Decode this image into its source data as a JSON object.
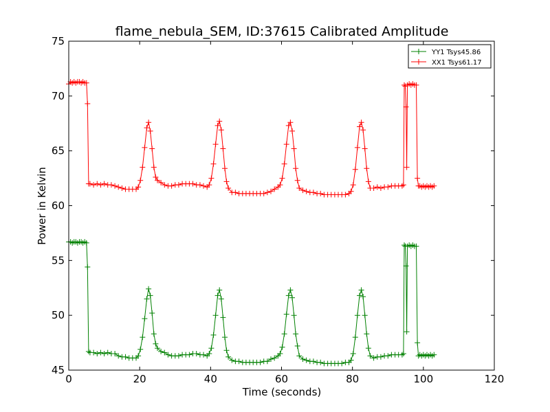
{
  "chart_data": {
    "type": "line",
    "title": "flame_nebula_SEM, ID:37615 Calibrated Amplitude",
    "xlabel": "Time (seconds)",
    "ylabel": "Power in Kelvin",
    "xlim": [
      0,
      120
    ],
    "ylim": [
      45,
      75
    ],
    "xticks": [
      0,
      20,
      40,
      60,
      80,
      100,
      120
    ],
    "yticks": [
      45,
      50,
      55,
      60,
      65,
      70,
      75
    ],
    "grid": false,
    "legend_position": "top-right",
    "marker": "+",
    "series": [
      {
        "name": "YY1 Tsys45.86",
        "color": "#008000",
        "points": [
          [
            0.0,
            56.7
          ],
          [
            0.5,
            56.7
          ],
          [
            1.0,
            56.6
          ],
          [
            1.5,
            56.7
          ],
          [
            2.0,
            56.7
          ],
          [
            2.5,
            56.6
          ],
          [
            3.0,
            56.7
          ],
          [
            3.5,
            56.7
          ],
          [
            4.0,
            56.6
          ],
          [
            4.5,
            56.7
          ],
          [
            5.0,
            56.6
          ],
          [
            5.3,
            54.4
          ],
          [
            5.6,
            46.7
          ],
          [
            6.0,
            46.6
          ],
          [
            7,
            46.6
          ],
          [
            8,
            46.5
          ],
          [
            9,
            46.6
          ],
          [
            10,
            46.5
          ],
          [
            11,
            46.6
          ],
          [
            12,
            46.5
          ],
          [
            13,
            46.5
          ],
          [
            14,
            46.3
          ],
          [
            15,
            46.2
          ],
          [
            16,
            46.2
          ],
          [
            17,
            46.1
          ],
          [
            18,
            46.1
          ],
          [
            19,
            46.1
          ],
          [
            19.6,
            46.3
          ],
          [
            20.2,
            46.9
          ],
          [
            20.8,
            48.0
          ],
          [
            21.4,
            49.7
          ],
          [
            22.0,
            51.5
          ],
          [
            22.5,
            52.4
          ],
          [
            23.0,
            51.8
          ],
          [
            23.5,
            50.2
          ],
          [
            24.0,
            48.3
          ],
          [
            24.5,
            47.4
          ],
          [
            25.0,
            47.0
          ],
          [
            26,
            46.7
          ],
          [
            27,
            46.6
          ],
          [
            28,
            46.4
          ],
          [
            29,
            46.3
          ],
          [
            30,
            46.3
          ],
          [
            31,
            46.3
          ],
          [
            32,
            46.4
          ],
          [
            33,
            46.4
          ],
          [
            34,
            46.4
          ],
          [
            35,
            46.5
          ],
          [
            36,
            46.5
          ],
          [
            37,
            46.4
          ],
          [
            38,
            46.4
          ],
          [
            39,
            46.3
          ],
          [
            39.6,
            46.5
          ],
          [
            40.2,
            47.0
          ],
          [
            40.8,
            48.2
          ],
          [
            41.4,
            50.0
          ],
          [
            42.0,
            51.8
          ],
          [
            42.5,
            52.3
          ],
          [
            43.0,
            51.5
          ],
          [
            43.5,
            49.8
          ],
          [
            44.0,
            48.0
          ],
          [
            44.5,
            46.8
          ],
          [
            45.0,
            46.2
          ],
          [
            46,
            45.9
          ],
          [
            47,
            45.8
          ],
          [
            48,
            45.8
          ],
          [
            49,
            45.7
          ],
          [
            50,
            45.7
          ],
          [
            51,
            45.7
          ],
          [
            52,
            45.7
          ],
          [
            53,
            45.7
          ],
          [
            54,
            45.7
          ],
          [
            55,
            45.8
          ],
          [
            56,
            45.8
          ],
          [
            57,
            46.0
          ],
          [
            58,
            46.1
          ],
          [
            59,
            46.3
          ],
          [
            59.6,
            46.5
          ],
          [
            60.2,
            47.1
          ],
          [
            60.8,
            48.3
          ],
          [
            61.4,
            50.1
          ],
          [
            62.0,
            51.8
          ],
          [
            62.5,
            52.3
          ],
          [
            63.0,
            51.6
          ],
          [
            63.5,
            50.0
          ],
          [
            64.0,
            48.3
          ],
          [
            64.5,
            47.2
          ],
          [
            65.0,
            46.3
          ],
          [
            66,
            46.0
          ],
          [
            67,
            45.9
          ],
          [
            68,
            45.8
          ],
          [
            69,
            45.8
          ],
          [
            70,
            45.7
          ],
          [
            71,
            45.7
          ],
          [
            72,
            45.6
          ],
          [
            73,
            45.6
          ],
          [
            74,
            45.6
          ],
          [
            75,
            45.6
          ],
          [
            76,
            45.6
          ],
          [
            77,
            45.6
          ],
          [
            78,
            45.7
          ],
          [
            79,
            45.7
          ],
          [
            79.6,
            45.9
          ],
          [
            80.2,
            46.5
          ],
          [
            80.8,
            48.0
          ],
          [
            81.4,
            50.0
          ],
          [
            82.0,
            51.8
          ],
          [
            82.5,
            52.3
          ],
          [
            83.0,
            51.7
          ],
          [
            83.5,
            50.0
          ],
          [
            84.0,
            48.3
          ],
          [
            84.5,
            47.0
          ],
          [
            85.0,
            46.3
          ],
          [
            86,
            46.1
          ],
          [
            87,
            46.2
          ],
          [
            88,
            46.2
          ],
          [
            89,
            46.3
          ],
          [
            90,
            46.3
          ],
          [
            91,
            46.4
          ],
          [
            92,
            46.4
          ],
          [
            93,
            46.4
          ],
          [
            94,
            46.4
          ],
          [
            94.4,
            46.5
          ],
          [
            94.6,
            56.4
          ],
          [
            94.9,
            56.3
          ],
          [
            95.1,
            54.5
          ],
          [
            95.3,
            48.5
          ],
          [
            95.5,
            56.3
          ],
          [
            96.0,
            56.4
          ],
          [
            96.5,
            56.3
          ],
          [
            97.0,
            56.4
          ],
          [
            97.5,
            56.3
          ],
          [
            98.0,
            56.3
          ],
          [
            98.3,
            47.5
          ],
          [
            98.6,
            46.3
          ],
          [
            99.0,
            46.4
          ],
          [
            99.5,
            46.3
          ],
          [
            100.0,
            46.4
          ],
          [
            100.5,
            46.3
          ],
          [
            101.0,
            46.4
          ],
          [
            101.5,
            46.3
          ],
          [
            102.0,
            46.4
          ],
          [
            102.5,
            46.3
          ],
          [
            103.0,
            46.4
          ]
        ]
      },
      {
        "name": "XX1 Tsys61.17",
        "color": "#ff0000",
        "points": [
          [
            0.0,
            71.1
          ],
          [
            0.5,
            71.3
          ],
          [
            1.0,
            71.2
          ],
          [
            1.5,
            71.3
          ],
          [
            2.0,
            71.2
          ],
          [
            2.5,
            71.3
          ],
          [
            3.0,
            71.3
          ],
          [
            3.5,
            71.2
          ],
          [
            4.0,
            71.3
          ],
          [
            4.5,
            71.2
          ],
          [
            5.0,
            71.2
          ],
          [
            5.3,
            69.3
          ],
          [
            5.6,
            62.0
          ],
          [
            6.0,
            62.0
          ],
          [
            7,
            61.9
          ],
          [
            8,
            62.0
          ],
          [
            9,
            61.9
          ],
          [
            10,
            62.0
          ],
          [
            11,
            61.9
          ],
          [
            12,
            61.9
          ],
          [
            13,
            61.8
          ],
          [
            14,
            61.7
          ],
          [
            15,
            61.6
          ],
          [
            16,
            61.5
          ],
          [
            17,
            61.5
          ],
          [
            18,
            61.5
          ],
          [
            19,
            61.5
          ],
          [
            19.6,
            61.7
          ],
          [
            20.2,
            62.3
          ],
          [
            20.8,
            63.5
          ],
          [
            21.4,
            65.3
          ],
          [
            22.0,
            67.1
          ],
          [
            22.5,
            67.6
          ],
          [
            23.0,
            66.8
          ],
          [
            23.5,
            65.2
          ],
          [
            24.0,
            63.5
          ],
          [
            24.5,
            62.6
          ],
          [
            25.0,
            62.3
          ],
          [
            26,
            62.1
          ],
          [
            27,
            61.9
          ],
          [
            28,
            61.8
          ],
          [
            29,
            61.8
          ],
          [
            30,
            61.9
          ],
          [
            31,
            61.9
          ],
          [
            32,
            62.0
          ],
          [
            33,
            62.0
          ],
          [
            34,
            62.0
          ],
          [
            35,
            62.0
          ],
          [
            36,
            61.9
          ],
          [
            37,
            61.9
          ],
          [
            38,
            61.8
          ],
          [
            39,
            61.7
          ],
          [
            39.6,
            61.9
          ],
          [
            40.2,
            62.5
          ],
          [
            40.8,
            63.8
          ],
          [
            41.4,
            65.6
          ],
          [
            42.0,
            67.3
          ],
          [
            42.5,
            67.7
          ],
          [
            43.0,
            66.9
          ],
          [
            43.5,
            65.2
          ],
          [
            44.0,
            63.4
          ],
          [
            44.5,
            62.2
          ],
          [
            45.0,
            61.6
          ],
          [
            46,
            61.2
          ],
          [
            47,
            61.2
          ],
          [
            48,
            61.1
          ],
          [
            49,
            61.1
          ],
          [
            50,
            61.1
          ],
          [
            51,
            61.1
          ],
          [
            52,
            61.1
          ],
          [
            53,
            61.1
          ],
          [
            54,
            61.1
          ],
          [
            55,
            61.1
          ],
          [
            56,
            61.2
          ],
          [
            57,
            61.3
          ],
          [
            58,
            61.5
          ],
          [
            59,
            61.7
          ],
          [
            59.6,
            61.9
          ],
          [
            60.2,
            62.5
          ],
          [
            60.8,
            63.8
          ],
          [
            61.4,
            65.6
          ],
          [
            62.0,
            67.3
          ],
          [
            62.5,
            67.6
          ],
          [
            63.0,
            66.8
          ],
          [
            63.5,
            65.2
          ],
          [
            64.0,
            63.4
          ],
          [
            64.5,
            62.3
          ],
          [
            65.0,
            61.6
          ],
          [
            66,
            61.4
          ],
          [
            67,
            61.3
          ],
          [
            68,
            61.2
          ],
          [
            69,
            61.2
          ],
          [
            70,
            61.1
          ],
          [
            71,
            61.1
          ],
          [
            72,
            61.0
          ],
          [
            73,
            61.0
          ],
          [
            74,
            61.0
          ],
          [
            75,
            61.0
          ],
          [
            76,
            61.0
          ],
          [
            77,
            61.0
          ],
          [
            78,
            61.0
          ],
          [
            79,
            61.1
          ],
          [
            79.6,
            61.3
          ],
          [
            80.2,
            61.9
          ],
          [
            80.8,
            63.3
          ],
          [
            81.4,
            65.3
          ],
          [
            82.0,
            67.2
          ],
          [
            82.5,
            67.6
          ],
          [
            83.0,
            66.9
          ],
          [
            83.5,
            65.2
          ],
          [
            84.0,
            63.4
          ],
          [
            84.5,
            62.2
          ],
          [
            85.0,
            61.6
          ],
          [
            86,
            61.6
          ],
          [
            87,
            61.7
          ],
          [
            88,
            61.6
          ],
          [
            89,
            61.7
          ],
          [
            90,
            61.7
          ],
          [
            91,
            61.8
          ],
          [
            92,
            61.8
          ],
          [
            93,
            61.8
          ],
          [
            94,
            61.8
          ],
          [
            94.4,
            61.9
          ],
          [
            94.6,
            71.0
          ],
          [
            94.9,
            70.9
          ],
          [
            95.1,
            69.0
          ],
          [
            95.3,
            63.5
          ],
          [
            95.5,
            71.0
          ],
          [
            96.0,
            71.1
          ],
          [
            96.5,
            71.0
          ],
          [
            97.0,
            71.1
          ],
          [
            97.5,
            71.0
          ],
          [
            98.0,
            71.0
          ],
          [
            98.3,
            62.5
          ],
          [
            98.6,
            61.8
          ],
          [
            99.0,
            61.8
          ],
          [
            99.5,
            61.7
          ],
          [
            100.0,
            61.8
          ],
          [
            100.5,
            61.7
          ],
          [
            101.0,
            61.8
          ],
          [
            101.5,
            61.7
          ],
          [
            102.0,
            61.8
          ],
          [
            102.5,
            61.7
          ],
          [
            103.0,
            61.8
          ]
        ]
      }
    ]
  }
}
